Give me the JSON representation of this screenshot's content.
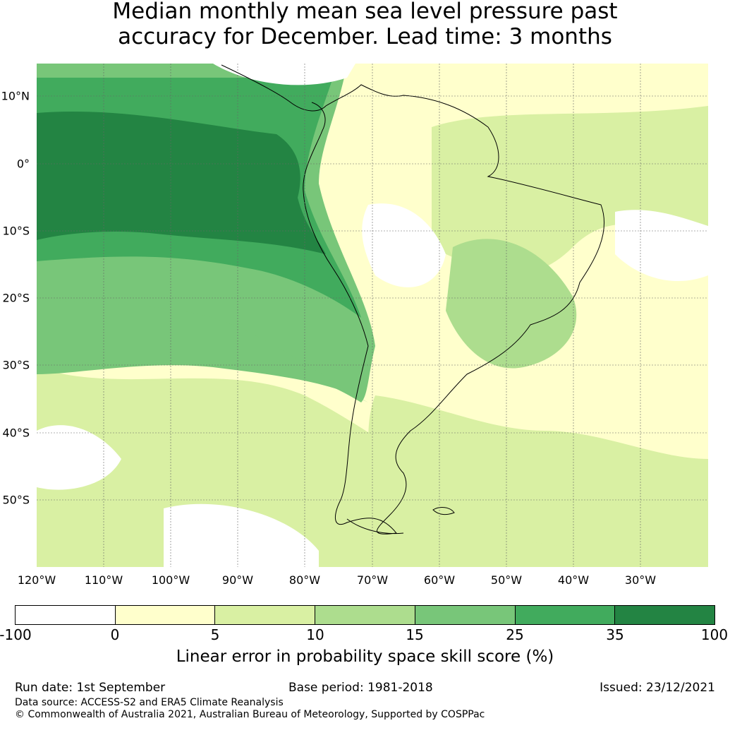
{
  "title": {
    "line1": "Median monthly mean sea level pressure past",
    "line2": "accuracy for December. Lead time: 3 months"
  },
  "map": {
    "region": "South America",
    "longitude_labels": [
      "120°W",
      "110°W",
      "100°W",
      "90°W",
      "80°W",
      "70°W",
      "60°W",
      "50°W",
      "40°W",
      "30°W"
    ],
    "latitude_labels": [
      "10°N",
      "0°",
      "10°S",
      "20°S",
      "30°S",
      "40°S",
      "50°S"
    ]
  },
  "colorbar": {
    "ticks": [
      "-100",
      "0",
      "5",
      "10",
      "15",
      "25",
      "35",
      "100"
    ],
    "colors": [
      "#ffffff",
      "#ffffcc",
      "#d9f0a3",
      "#addd8e",
      "#78c679",
      "#41ab5d",
      "#238443"
    ],
    "label": "Linear error in probability space skill score (%)"
  },
  "footer": {
    "run_date": "Run date: 1st September",
    "base_period": "Base period: 1981-2018",
    "issued": "Issued: 23/12/2021",
    "data_source": "Data source: ACCESS-S2 and ERA5 Climate Reanalysis",
    "copyright": "© Commonwealth of Australia 2021, Australian Bureau of Meteorology, Supported by COSPPac"
  }
}
